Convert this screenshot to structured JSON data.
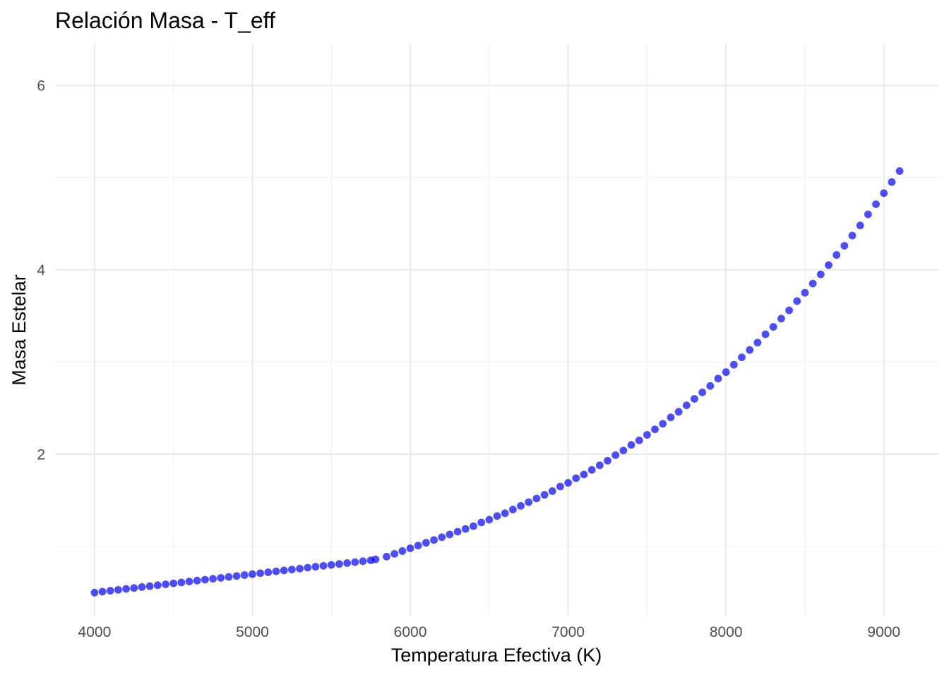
{
  "chart_data": {
    "type": "scatter",
    "title": "Relación Masa - T_eff",
    "xlabel": "Temperatura Efectiva (K)",
    "ylabel": "Masa Estelar",
    "xlim": [
      3750,
      9350
    ],
    "ylim": [
      0.25,
      6.45
    ],
    "x_ticks": [
      4000,
      5000,
      6000,
      7000,
      8000,
      9000
    ],
    "x_tick_labels": [
      "4000",
      "5000",
      "6000",
      "7000",
      "8000",
      "9000"
    ],
    "x_minor_ticks": [
      4500,
      5500,
      6500,
      7500,
      8500
    ],
    "y_ticks": [
      2,
      4,
      6
    ],
    "y_tick_labels": [
      "2",
      "4",
      "6"
    ],
    "y_minor_ticks": [
      1,
      3,
      5
    ],
    "grid": true,
    "legend": "none",
    "point_color": "#0000ff",
    "point_opacity": 0.7,
    "series": [
      {
        "values": [
          [
            4000,
            0.5
          ],
          [
            4050,
            0.51
          ],
          [
            4100,
            0.52
          ],
          [
            4150,
            0.53
          ],
          [
            4200,
            0.54
          ],
          [
            4250,
            0.55
          ],
          [
            4300,
            0.56
          ],
          [
            4350,
            0.57
          ],
          [
            4400,
            0.58
          ],
          [
            4450,
            0.59
          ],
          [
            4500,
            0.6
          ],
          [
            4550,
            0.61
          ],
          [
            4600,
            0.62
          ],
          [
            4650,
            0.63
          ],
          [
            4700,
            0.64
          ],
          [
            4750,
            0.65
          ],
          [
            4800,
            0.66
          ],
          [
            4850,
            0.67
          ],
          [
            4900,
            0.68
          ],
          [
            4950,
            0.69
          ],
          [
            5000,
            0.7
          ],
          [
            5050,
            0.71
          ],
          [
            5100,
            0.72
          ],
          [
            5150,
            0.73
          ],
          [
            5200,
            0.74
          ],
          [
            5250,
            0.75
          ],
          [
            5300,
            0.76
          ],
          [
            5350,
            0.77
          ],
          [
            5400,
            0.78
          ],
          [
            5450,
            0.79
          ],
          [
            5500,
            0.8
          ],
          [
            5550,
            0.81
          ],
          [
            5600,
            0.82
          ],
          [
            5650,
            0.83
          ],
          [
            5700,
            0.84
          ],
          [
            5750,
            0.85
          ],
          [
            5780,
            0.86
          ],
          [
            5850,
            0.89
          ],
          [
            5900,
            0.92
          ],
          [
            5950,
            0.95
          ],
          [
            6000,
            0.98
          ],
          [
            6050,
            1.01
          ],
          [
            6100,
            1.04
          ],
          [
            6150,
            1.07
          ],
          [
            6200,
            1.1
          ],
          [
            6250,
            1.13
          ],
          [
            6300,
            1.16
          ],
          [
            6350,
            1.19
          ],
          [
            6400,
            1.22
          ],
          [
            6450,
            1.26
          ],
          [
            6500,
            1.29
          ],
          [
            6550,
            1.33
          ],
          [
            6600,
            1.36
          ],
          [
            6650,
            1.4
          ],
          [
            6700,
            1.44
          ],
          [
            6750,
            1.48
          ],
          [
            6800,
            1.52
          ],
          [
            6850,
            1.56
          ],
          [
            6900,
            1.6
          ],
          [
            6950,
            1.65
          ],
          [
            7000,
            1.69
          ],
          [
            7050,
            1.74
          ],
          [
            7100,
            1.78
          ],
          [
            7150,
            1.83
          ],
          [
            7200,
            1.88
          ],
          [
            7250,
            1.93
          ],
          [
            7300,
            1.99
          ],
          [
            7350,
            2.04
          ],
          [
            7400,
            2.1
          ],
          [
            7450,
            2.15
          ],
          [
            7500,
            2.21
          ],
          [
            7550,
            2.27
          ],
          [
            7600,
            2.33
          ],
          [
            7650,
            2.4
          ],
          [
            7700,
            2.46
          ],
          [
            7750,
            2.53
          ],
          [
            7800,
            2.6
          ],
          [
            7850,
            2.67
          ],
          [
            7900,
            2.74
          ],
          [
            7950,
            2.82
          ],
          [
            8000,
            2.89
          ],
          [
            8050,
            2.97
          ],
          [
            8100,
            3.05
          ],
          [
            8150,
            3.13
          ],
          [
            8200,
            3.21
          ],
          [
            8250,
            3.3
          ],
          [
            8300,
            3.38
          ],
          [
            8350,
            3.47
          ],
          [
            8400,
            3.56
          ],
          [
            8450,
            3.66
          ],
          [
            8500,
            3.75
          ],
          [
            8550,
            3.85
          ],
          [
            8600,
            3.95
          ],
          [
            8650,
            4.05
          ],
          [
            8700,
            4.16
          ],
          [
            8750,
            4.26
          ],
          [
            8800,
            4.37
          ],
          [
            8850,
            4.48
          ],
          [
            8900,
            4.6
          ],
          [
            8950,
            4.71
          ],
          [
            9000,
            4.83
          ],
          [
            9050,
            4.95
          ],
          [
            9100,
            5.07
          ]
        ]
      }
    ]
  }
}
